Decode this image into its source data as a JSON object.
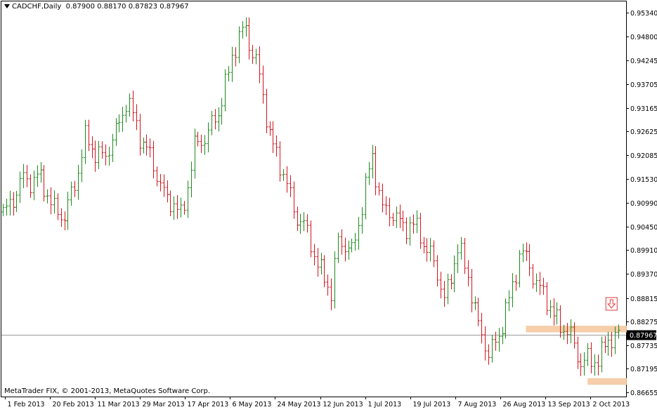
{
  "header": {
    "symbol": "CADCHF,Daily",
    "ohlc": "0.87900 0.88170 0.87823 0.87967"
  },
  "footer": {
    "copyright": "MetaTrader FIX, © 2001-2013, MetaQuotes Software Corp."
  },
  "colors": {
    "bull": "#1e8a1e",
    "bear": "#d2141e",
    "zone": "#f5c9a0",
    "price_line": "#9a9a9a",
    "arrow": "#e33a3a"
  },
  "chart_data": {
    "type": "ohlc",
    "symbol": "CADCHF",
    "timeframe": "Daily",
    "ylim": [
      0.8656,
      0.956
    ],
    "y_ticks": [
      "0.95340",
      "0.94800",
      "0.94245",
      "0.93705",
      "0.93165",
      "0.92625",
      "0.92085",
      "0.91530",
      "0.90990",
      "0.90450",
      "0.89910",
      "0.89370",
      "0.88815",
      "0.88275",
      "0.87735",
      "0.87195",
      "0.86655"
    ],
    "x_ticks": [
      "1 Feb 2013",
      "20 Feb 2013",
      "11 Mar 2013",
      "29 Mar 2013",
      "17 Apr 2013",
      "6 May 2013",
      "24 May 2013",
      "12 Jun 2013",
      "1 Jul 2013",
      "19 Jul 2013",
      "7 Aug 2013",
      "26 Aug 2013",
      "13 Sep 2013",
      "2 Oct 2013"
    ],
    "current_price": "0.87967",
    "current_price_value": 0.87967,
    "trend_anchors": [
      [
        0,
        0.9075
      ],
      [
        6,
        0.915
      ],
      [
        10,
        0.916
      ],
      [
        15,
        0.909
      ],
      [
        18,
        0.906
      ],
      [
        24,
        0.924
      ],
      [
        30,
        0.92
      ],
      [
        36,
        0.933
      ],
      [
        40,
        0.926
      ],
      [
        44,
        0.918
      ],
      [
        48,
        0.911
      ],
      [
        52,
        0.907
      ],
      [
        56,
        0.922
      ],
      [
        63,
        0.93
      ],
      [
        67,
        0.944
      ],
      [
        71,
        0.95
      ],
      [
        74,
        0.942
      ],
      [
        78,
        0.926
      ],
      [
        82,
        0.916
      ],
      [
        86,
        0.907
      ],
      [
        90,
        0.901
      ],
      [
        93,
        0.894
      ],
      [
        96,
        0.889
      ],
      [
        98,
        0.902
      ],
      [
        102,
        0.898
      ],
      [
        105,
        0.91
      ],
      [
        108,
        0.92
      ],
      [
        111,
        0.909
      ],
      [
        115,
        0.906
      ],
      [
        118,
        0.905
      ],
      [
        122,
        0.903
      ],
      [
        126,
        0.896
      ],
      [
        129,
        0.888
      ],
      [
        133,
        0.899
      ],
      [
        136,
        0.894
      ],
      [
        139,
        0.881
      ],
      [
        142,
        0.876
      ],
      [
        145,
        0.879
      ],
      [
        148,
        0.888
      ],
      [
        151,
        0.898
      ],
      [
        154,
        0.896
      ],
      [
        157,
        0.89
      ],
      [
        160,
        0.886
      ],
      [
        163,
        0.882
      ],
      [
        166,
        0.879
      ],
      [
        169,
        0.874
      ],
      [
        172,
        0.873
      ],
      [
        175,
        0.876
      ],
      [
        177,
        0.878
      ],
      [
        180,
        0.8797
      ]
    ],
    "support_zones": [
      {
        "from": 0.8803,
        "to": 0.8818,
        "start_index": 153,
        "end_index": 180
      },
      {
        "from": 0.8683,
        "to": 0.8698,
        "start_index": 171,
        "end_index": 180
      }
    ],
    "signal": {
      "type": "sell-arrow",
      "price": 0.8868,
      "index": 178
    }
  }
}
